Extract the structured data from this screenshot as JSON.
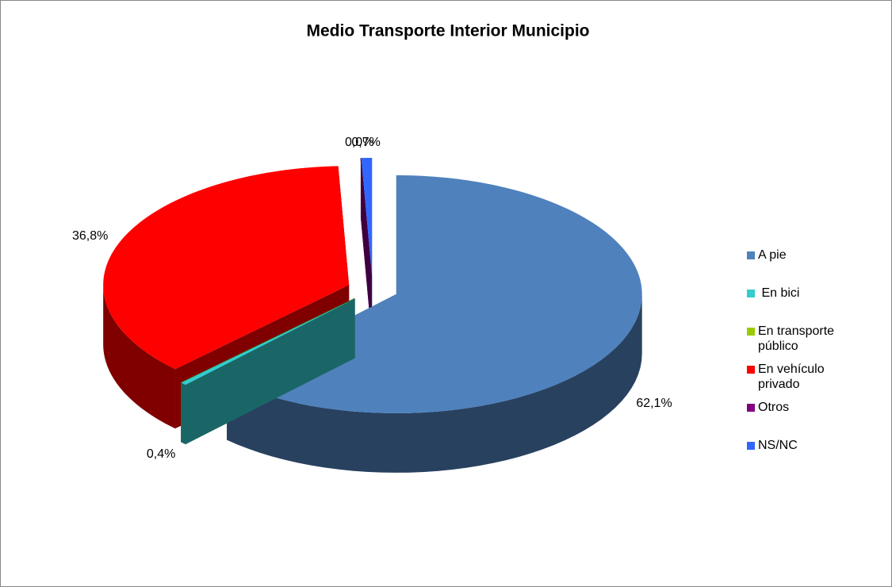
{
  "chart_data": {
    "type": "pie3d",
    "title": "Medio Transporte Interior Municipio",
    "categories": [
      "A pie",
      " En bici",
      "En transporte público",
      "En vehículo privado",
      "Otros",
      "NS/NC"
    ],
    "values": [
      62.1,
      0.4,
      0.0,
      36.8,
      0.0,
      0.7
    ],
    "value_labels": [
      "62,1%",
      "0,4%",
      null,
      "36,8%",
      "0,0%",
      "0,7%"
    ],
    "colors": [
      "#4f81bd",
      "#33cccc",
      "#99cc00",
      "#ff0000",
      "#800080",
      "#3366ff"
    ],
    "legend": "right"
  }
}
